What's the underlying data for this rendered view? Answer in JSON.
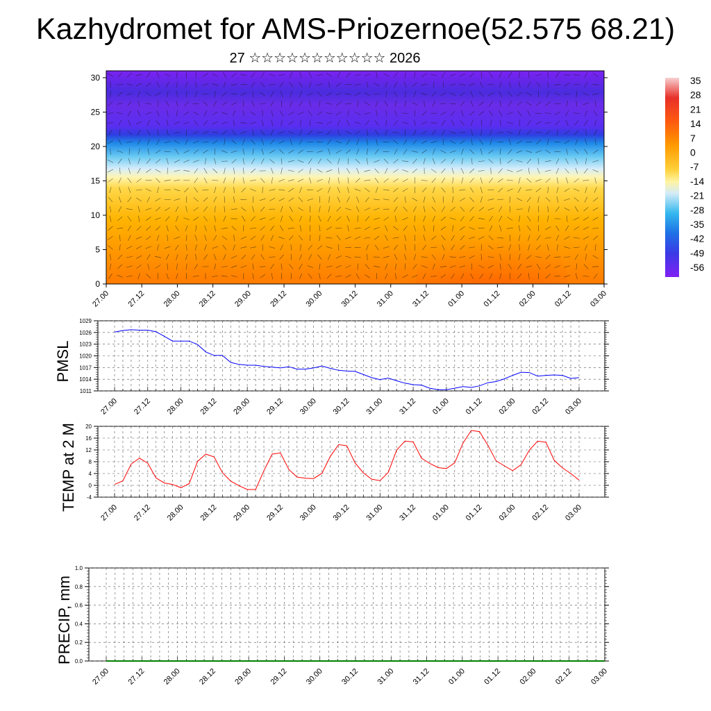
{
  "header": {
    "title": "Kazhydromet for AMS-Priozernoe(52.575 68.21)",
    "subtitle": "27 ☆☆☆☆☆☆☆☆☆☆☆ 2026"
  },
  "time_labels": [
    "27.00",
    "27.12",
    "28.00",
    "28.12",
    "29.00",
    "29.12",
    "30.00",
    "30.12",
    "31.00",
    "31.12",
    "01.00",
    "01.12",
    "02.00",
    "02.12",
    "03.00"
  ],
  "colorbar": {
    "labels": [
      "35",
      "28",
      "21",
      "14",
      "7",
      "0",
      "-7",
      "-14",
      "-21",
      "-28",
      "-35",
      "-42",
      "-49",
      "-56"
    ],
    "colors": [
      "#f3c9c9",
      "#ee3b2a",
      "#ff7800",
      "#ffd43c",
      "#fff7a8",
      "#d4ecf8",
      "#2fb5ee",
      "#3a45e8",
      "#7a1ef5"
    ]
  },
  "chart_data": [
    {
      "type": "heatmap",
      "title": "Kazhydromet for AMS-Priozernoe(52.575 68.21)",
      "ylim": [
        0,
        31
      ],
      "y_ticks": [
        0,
        5,
        10,
        15,
        20,
        25,
        30
      ],
      "x": [
        "27.00",
        "27.12",
        "28.00",
        "28.12",
        "29.00",
        "29.12",
        "30.00",
        "30.12",
        "31.00",
        "31.12",
        "01.00",
        "01.12",
        "02.00",
        "02.12",
        "03.00"
      ],
      "z_range": [
        -56,
        35
      ],
      "description_levels_height": [
        0,
        5,
        10,
        15,
        20,
        25,
        30
      ],
      "approx_temperature_profile": [
        8,
        4,
        -2,
        -12,
        -45,
        -56,
        -56
      ]
    },
    {
      "type": "line",
      "ylabel": "PMSL",
      "ylim": [
        1011,
        1029
      ],
      "y_ticks": [
        1011,
        1014,
        1017,
        1020,
        1023,
        1026,
        1029
      ],
      "x": [
        "27.00",
        "27.03",
        "27.06",
        "27.09",
        "27.12",
        "27.15",
        "27.18",
        "27.21",
        "28.00",
        "28.03",
        "28.06",
        "28.09",
        "28.12",
        "28.15",
        "28.18",
        "28.21",
        "29.00",
        "29.03",
        "29.06",
        "29.09",
        "29.12",
        "29.15",
        "29.18",
        "29.21",
        "30.00",
        "30.03",
        "30.06",
        "30.09",
        "30.12",
        "30.15",
        "30.18",
        "30.21",
        "31.00",
        "31.03",
        "31.06",
        "31.09",
        "31.12",
        "31.15",
        "31.18",
        "31.21",
        "01.00",
        "01.03",
        "01.06",
        "01.09",
        "01.12",
        "01.15",
        "01.18",
        "01.21",
        "02.00",
        "02.03",
        "02.06",
        "02.09",
        "02.12",
        "02.15",
        "02.18",
        "02.21",
        "03.00"
      ],
      "series": [
        {
          "values": [
            1026.1,
            1026.5,
            1026.7,
            1026.6,
            1026.6,
            1026.2,
            1025.0,
            1023.8,
            1023.8,
            1023.8,
            1022.9,
            1021.0,
            1020.1,
            1020.1,
            1018.3,
            1017.8,
            1017.6,
            1017.6,
            1017.3,
            1017.1,
            1016.9,
            1017.2,
            1016.6,
            1016.6,
            1016.9,
            1017.4,
            1016.8,
            1016.3,
            1016.1,
            1016.0,
            1015.2,
            1014.4,
            1013.9,
            1014.3,
            1013.6,
            1013.0,
            1012.6,
            1012.5,
            1011.7,
            1011.3,
            1011.3,
            1011.7,
            1012.1,
            1011.9,
            1012.3,
            1013.1,
            1013.4,
            1014.1,
            1015.0,
            1015.8,
            1015.7,
            1014.8,
            1015.0,
            1015.1,
            1015.0,
            1014.2,
            1014.4
          ]
        }
      ],
      "colors": [
        "#0000ff"
      ]
    },
    {
      "type": "line",
      "ylabel": "TEMP at 2 M",
      "ylim": [
        -4,
        20
      ],
      "y_ticks": [
        -4,
        0,
        4,
        8,
        12,
        16,
        20
      ],
      "x": [
        "27.00",
        "27.03",
        "27.06",
        "27.09",
        "27.12",
        "27.15",
        "27.18",
        "27.21",
        "28.00",
        "28.03",
        "28.06",
        "28.09",
        "28.12",
        "28.15",
        "28.18",
        "28.21",
        "29.00",
        "29.03",
        "29.06",
        "29.09",
        "29.12",
        "29.15",
        "29.18",
        "29.21",
        "30.00",
        "30.03",
        "30.06",
        "30.09",
        "30.12",
        "30.15",
        "30.18",
        "30.21",
        "31.00",
        "31.03",
        "31.06",
        "31.09",
        "31.12",
        "31.15",
        "31.18",
        "31.21",
        "01.00",
        "01.03",
        "01.06",
        "01.09",
        "01.12",
        "01.15",
        "01.18",
        "01.21",
        "02.00",
        "02.03",
        "02.06",
        "02.09",
        "02.12",
        "02.15",
        "02.18",
        "02.21",
        "03.00"
      ],
      "series": [
        {
          "values": [
            0.3,
            1.5,
            7.2,
            9.2,
            7.5,
            2.5,
            0.8,
            0.3,
            -0.8,
            0.6,
            8.1,
            10.6,
            9.6,
            4.3,
            1.4,
            -0.1,
            -1.4,
            -1.4,
            4.9,
            10.6,
            11.0,
            5.4,
            2.8,
            2.4,
            2.3,
            4.1,
            9.8,
            13.8,
            13.4,
            7.6,
            4.2,
            2.1,
            1.6,
            4.4,
            11.9,
            15.0,
            14.7,
            9.2,
            7.4,
            6.0,
            5.7,
            7.6,
            14.3,
            18.6,
            18.2,
            13.6,
            8.3,
            6.6,
            5.0,
            7.0,
            11.9,
            15.0,
            14.6,
            8.5,
            5.9,
            4.0,
            1.8
          ]
        }
      ],
      "colors": [
        "#ff0000"
      ]
    },
    {
      "type": "line",
      "ylabel": "PRECIP, mm",
      "ylim": [
        0,
        1
      ],
      "y_ticks": [
        "0.0",
        "0.2",
        "0.4",
        "0.6",
        "0.8",
        "1.0"
      ],
      "x": [
        "27.00",
        "27.12",
        "28.00",
        "28.12",
        "29.00",
        "29.12",
        "30.00",
        "30.12",
        "31.00",
        "31.12",
        "01.00",
        "01.12",
        "02.00",
        "02.12",
        "03.00"
      ],
      "series": [
        {
          "values": [
            0,
            0,
            0,
            0,
            0,
            0,
            0,
            0,
            0,
            0,
            0,
            0,
            0,
            0,
            0
          ]
        }
      ],
      "colors": [
        "#008000"
      ]
    }
  ]
}
